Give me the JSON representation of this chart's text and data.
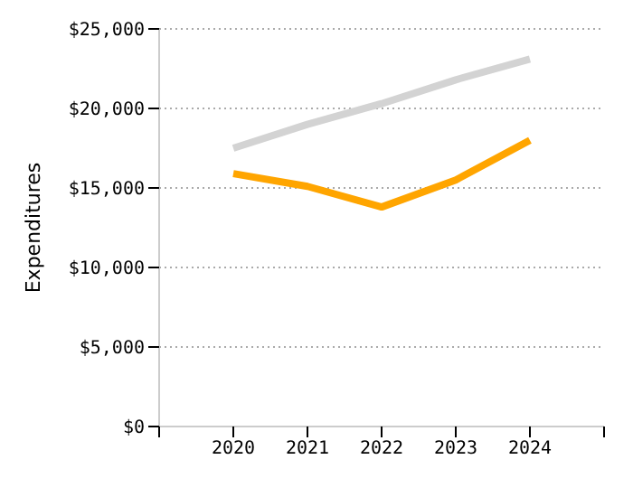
{
  "chart_data": {
    "type": "line",
    "ylabel": "Expenditures",
    "x": [
      2020,
      2021,
      2022,
      2023,
      2024
    ],
    "xlim": [
      2019,
      2025
    ],
    "xticks": [
      {
        "value": 2019,
        "label": null
      },
      2020,
      2021,
      2022,
      2023,
      2024,
      {
        "value": 2025,
        "label": null
      }
    ],
    "ylim": [
      0,
      25000
    ],
    "yticks": [
      {
        "value": 0,
        "label": "$0"
      },
      {
        "value": 5000,
        "label": "$5,000"
      },
      {
        "value": 10000,
        "label": "$10,000"
      },
      {
        "value": 15000,
        "label": "$15,000"
      },
      {
        "value": 20000,
        "label": "$20,000"
      },
      {
        "value": 25000,
        "label": "$25,000"
      }
    ],
    "grid": "y",
    "legend": false,
    "marker": "none",
    "series": [
      {
        "color": "#d3d3d3",
        "values": [
          17500,
          19000,
          20300,
          21800,
          23100
        ]
      },
      {
        "color": "#ffa500",
        "values": [
          15900,
          15100,
          13800,
          15500,
          18000
        ]
      }
    ]
  }
}
